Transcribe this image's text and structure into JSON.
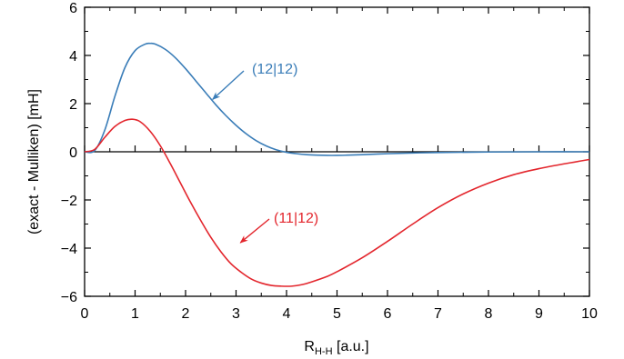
{
  "chart_data": {
    "type": "line",
    "title": "",
    "xlabel_main": "R",
    "xlabel_sub": "H-H",
    "xlabel_unit": " [a.u.]",
    "ylabel": "(exact - Mulliken) [mH]",
    "xlim": [
      0,
      10
    ],
    "ylim": [
      -6,
      6
    ],
    "x_ticks": [
      "0",
      "1",
      "2",
      "3",
      "4",
      "5",
      "6",
      "7",
      "8",
      "9",
      "10"
    ],
    "y_ticks": [
      "−6",
      "−4",
      "−2",
      "0",
      "2",
      "4",
      "6"
    ],
    "grid": false,
    "legend": "none",
    "colors": {
      "series_12_12": "#3a7db8",
      "series_11_12": "#e3262d"
    },
    "series": [
      {
        "name": "(12|12)",
        "x": [
          0.0,
          0.2,
          0.4,
          0.6,
          0.8,
          1.0,
          1.2,
          1.3,
          1.4,
          1.6,
          1.8,
          2.0,
          2.2,
          2.4,
          2.6,
          2.8,
          3.0,
          3.2,
          3.4,
          3.6,
          3.8,
          4.0,
          4.2,
          4.4,
          4.6,
          4.8,
          5.0,
          5.2,
          5.5,
          6.0,
          6.5,
          7.0,
          8.0,
          9.0,
          10.0
        ],
        "y": [
          0.0,
          0.05,
          0.9,
          2.3,
          3.5,
          4.2,
          4.47,
          4.5,
          4.47,
          4.25,
          3.9,
          3.45,
          2.95,
          2.45,
          1.95,
          1.5,
          1.1,
          0.75,
          0.46,
          0.24,
          0.08,
          -0.02,
          -0.08,
          -0.12,
          -0.14,
          -0.15,
          -0.15,
          -0.14,
          -0.12,
          -0.08,
          -0.05,
          -0.03,
          -0.01,
          0.0,
          0.0
        ]
      },
      {
        "name": "(11|12)",
        "x": [
          0.0,
          0.2,
          0.4,
          0.6,
          0.8,
          0.95,
          1.1,
          1.3,
          1.5,
          1.7,
          1.9,
          2.1,
          2.3,
          2.5,
          2.7,
          2.9,
          3.1,
          3.3,
          3.5,
          3.7,
          3.9,
          4.1,
          4.3,
          4.5,
          4.8,
          5.0,
          5.5,
          6.0,
          6.5,
          7.0,
          7.5,
          8.0,
          8.5,
          9.0,
          9.5,
          10.0
        ],
        "y": [
          0.0,
          0.1,
          0.6,
          1.05,
          1.3,
          1.35,
          1.25,
          0.85,
          0.25,
          -0.5,
          -1.3,
          -2.1,
          -2.85,
          -3.55,
          -4.15,
          -4.65,
          -5.0,
          -5.28,
          -5.45,
          -5.55,
          -5.58,
          -5.58,
          -5.52,
          -5.4,
          -5.18,
          -4.98,
          -4.4,
          -3.72,
          -3.0,
          -2.32,
          -1.75,
          -1.3,
          -0.95,
          -0.7,
          -0.5,
          -0.32
        ]
      }
    ],
    "annotations": [
      {
        "text": "(12|12)",
        "series": "series_12_12",
        "point_at": [
          2.5,
          2.1
        ]
      },
      {
        "text": "(11|12)",
        "series": "series_11_12",
        "point_at": [
          3.05,
          -3.85
        ]
      }
    ]
  }
}
